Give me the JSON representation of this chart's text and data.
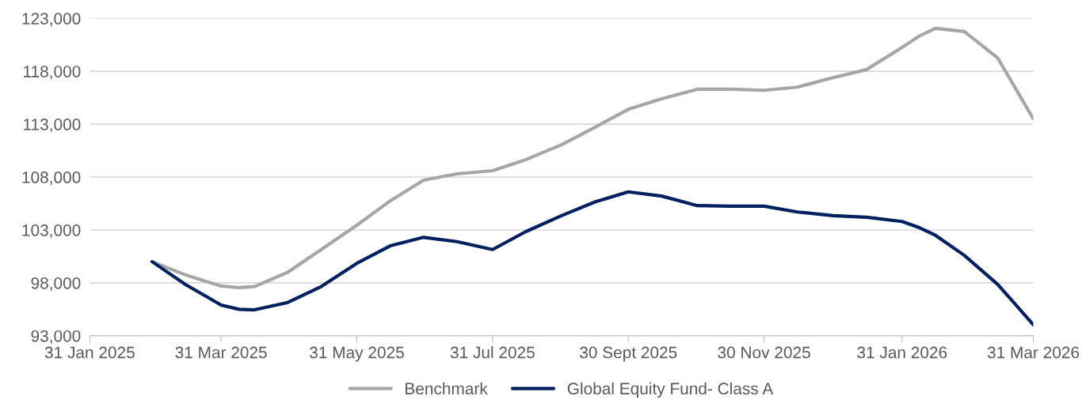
{
  "chart_data": {
    "type": "line",
    "x": [
      "2025-02-28",
      "2025-03-15",
      "2025-03-31",
      "2025-04-08",
      "2025-04-15",
      "2025-04-30",
      "2025-05-15",
      "2025-05-31",
      "2025-06-15",
      "2025-06-30",
      "2025-07-15",
      "2025-07-31",
      "2025-08-15",
      "2025-08-31",
      "2025-09-15",
      "2025-09-30",
      "2025-10-15",
      "2025-10-31",
      "2025-11-15",
      "2025-11-30",
      "2025-12-15",
      "2025-12-31",
      "2026-01-15",
      "2026-01-31",
      "2026-02-08",
      "2026-02-15",
      "2026-02-28",
      "2026-03-15",
      "2026-03-31"
    ],
    "series": [
      {
        "name": "Benchmark",
        "color": "#a6a6a6",
        "values": [
          100000,
          98750,
          97700,
          97550,
          97650,
          99000,
          101150,
          103450,
          105750,
          107700,
          108300,
          108600,
          109650,
          111050,
          112700,
          114400,
          115400,
          116300,
          116300,
          116200,
          116500,
          117400,
          118150,
          120250,
          121350,
          122050,
          121750,
          119250,
          113500
        ]
      },
      {
        "name": "Global Equity Fund- Class A",
        "color": "#002060",
        "values": [
          100000,
          97850,
          95900,
          95500,
          95450,
          96150,
          97650,
          99850,
          101500,
          102300,
          101900,
          101150,
          102850,
          104350,
          105650,
          106600,
          106200,
          105300,
          105250,
          105250,
          104700,
          104350,
          104200,
          103800,
          103200,
          102500,
          100600,
          97850,
          94050
        ]
      }
    ],
    "xlim": [
      "2025-01-31",
      "2026-03-31"
    ],
    "xticks": [
      {
        "value": "2025-01-31",
        "label": "31 Jan 2025"
      },
      {
        "value": "2025-03-31",
        "label": "31 Mar 2025"
      },
      {
        "value": "2025-05-31",
        "label": "31 May 2025"
      },
      {
        "value": "2025-07-31",
        "label": "31 Jul 2025"
      },
      {
        "value": "2025-09-30",
        "label": "30 Sept 2025"
      },
      {
        "value": "2025-11-30",
        "label": "30 Nov 2025"
      },
      {
        "value": "2026-01-31",
        "label": "31 Jan 2026"
      },
      {
        "value": "2026-03-31",
        "label": "31 Mar 2026"
      }
    ],
    "ylim": [
      93000,
      123000
    ],
    "yticks": [
      {
        "value": 93000,
        "label": "93,000"
      },
      {
        "value": 98000,
        "label": "98,000"
      },
      {
        "value": 103000,
        "label": "103,000"
      },
      {
        "value": 108000,
        "label": "108,000"
      },
      {
        "value": 113000,
        "label": "113,000"
      },
      {
        "value": 118000,
        "label": "118,000"
      },
      {
        "value": 123000,
        "label": "123,000"
      }
    ],
    "grid": "y",
    "legend": "bottom",
    "marker": "none",
    "line_style": "solid"
  }
}
